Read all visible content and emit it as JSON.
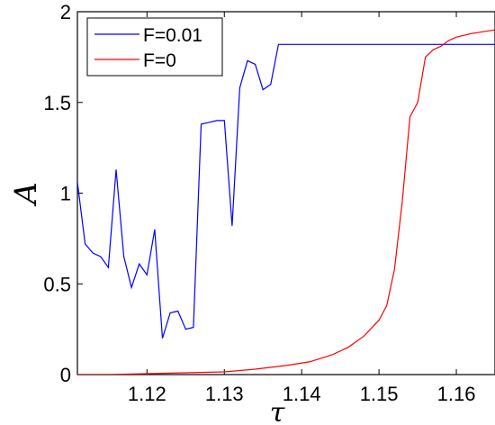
{
  "chart_data": {
    "type": "line",
    "title": "",
    "xlabel": "τ",
    "ylabel": "A",
    "xlim": [
      1.111,
      1.165
    ],
    "ylim": [
      0,
      2
    ],
    "grid": false,
    "legend_position": "top-left",
    "x_ticks": [
      1.12,
      1.13,
      1.14,
      1.15,
      1.16
    ],
    "x_tick_labels": [
      "1.12",
      "1.13",
      "1.14",
      "1.15",
      "1.16"
    ],
    "y_ticks": [
      0,
      0.5,
      1,
      1.5,
      2
    ],
    "y_tick_labels": [
      "0",
      "0.5",
      "1",
      "1.5",
      "2"
    ],
    "series": [
      {
        "name": "F=0.01",
        "color": "#0000ff",
        "x": [
          1.111,
          1.112,
          1.113,
          1.114,
          1.115,
          1.116,
          1.117,
          1.118,
          1.119,
          1.12,
          1.121,
          1.122,
          1.123,
          1.124,
          1.125,
          1.126,
          1.127,
          1.128,
          1.129,
          1.13,
          1.131,
          1.132,
          1.133,
          1.134,
          1.135,
          1.136,
          1.137,
          1.138,
          1.139,
          1.14,
          1.141,
          1.142,
          1.145,
          1.15,
          1.155,
          1.16,
          1.165
        ],
        "y": [
          1.06,
          0.72,
          0.67,
          0.65,
          0.59,
          1.13,
          0.65,
          0.48,
          0.61,
          0.55,
          0.8,
          0.2,
          0.34,
          0.35,
          0.25,
          0.26,
          1.38,
          1.39,
          1.4,
          1.4,
          0.82,
          1.58,
          1.73,
          1.71,
          1.57,
          1.6,
          1.82,
          1.82,
          1.82,
          1.82,
          1.82,
          1.82,
          1.82,
          1.82,
          1.82,
          1.82,
          1.82
        ]
      },
      {
        "name": "F=0",
        "color": "#ff0000",
        "x": [
          1.111,
          1.115,
          1.12,
          1.125,
          1.13,
          1.134,
          1.138,
          1.141,
          1.144,
          1.146,
          1.148,
          1.15,
          1.151,
          1.152,
          1.153,
          1.154,
          1.155,
          1.156,
          1.157,
          1.158,
          1.159,
          1.16,
          1.162,
          1.165
        ],
        "y": [
          0.0,
          0.0,
          0.005,
          0.01,
          0.015,
          0.03,
          0.05,
          0.07,
          0.11,
          0.15,
          0.21,
          0.3,
          0.38,
          0.58,
          0.95,
          1.42,
          1.5,
          1.75,
          1.79,
          1.81,
          1.84,
          1.86,
          1.88,
          1.9
        ]
      }
    ]
  }
}
